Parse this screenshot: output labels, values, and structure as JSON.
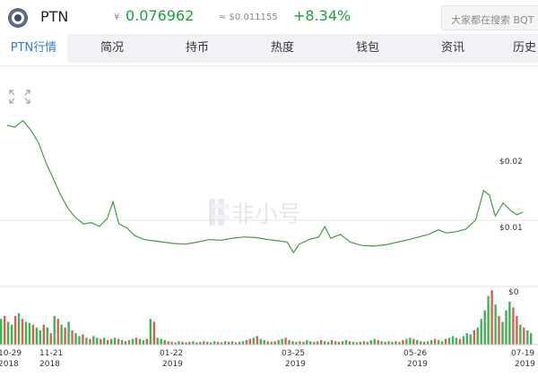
{
  "header": {
    "coin_name": "PTN",
    "cny_symbol": "¥",
    "cny_price": "0.076962",
    "usd_price": "≈ $0.011155",
    "change": "+8.34%",
    "search_placeholder": "大家都在搜索 BQT"
  },
  "tabs": [
    {
      "label": "PTN行情",
      "active": true
    },
    {
      "label": "简况"
    },
    {
      "label": "持币"
    },
    {
      "label": "热度"
    },
    {
      "label": "钱包"
    },
    {
      "label": "资讯"
    },
    {
      "label": "历史"
    }
  ],
  "colors": {
    "accent": "#2b7de0",
    "up": "#19a33a",
    "line": "#3ca13c",
    "vol_up": "#3fb34f",
    "vol_down": "#e05d4d"
  },
  "watermark": "非小号",
  "chart_data": {
    "type": "line",
    "price_axis_labels": [
      "$0.02",
      "$0.01"
    ],
    "volume_axis_label": "$0",
    "x_tick_labels": [
      {
        "date": "10-29",
        "year": "2018"
      },
      {
        "date": "11-21",
        "year": "2018"
      },
      {
        "date": "01-22",
        "year": "2019"
      },
      {
        "date": "03-25",
        "year": "2019"
      },
      {
        "date": "05-26",
        "year": "2019"
      },
      {
        "date": "07-19",
        "year": "2019"
      }
    ],
    "ylim": [
      0,
      0.03
    ],
    "price_points": [
      [
        "2018-10-29",
        0.0255
      ],
      [
        "2018-11-02",
        0.0252
      ],
      [
        "2018-11-06",
        0.0262
      ],
      [
        "2018-11-10",
        0.0248
      ],
      [
        "2018-11-14",
        0.0228
      ],
      [
        "2018-11-18",
        0.0196
      ],
      [
        "2018-11-22",
        0.017
      ],
      [
        "2018-11-25",
        0.015
      ],
      [
        "2018-11-29",
        0.0128
      ],
      [
        "2018-12-03",
        0.0113
      ],
      [
        "2018-12-07",
        0.0104
      ],
      [
        "2018-12-11",
        0.0106
      ],
      [
        "2018-12-15",
        0.01
      ],
      [
        "2018-12-19",
        0.0112
      ],
      [
        "2018-12-22",
        0.0138
      ],
      [
        "2018-12-25",
        0.0104
      ],
      [
        "2018-12-29",
        0.0098
      ],
      [
        "2019-01-02",
        0.0086
      ],
      [
        "2019-01-07",
        0.008
      ],
      [
        "2019-01-12",
        0.0078
      ],
      [
        "2019-01-17",
        0.0076
      ],
      [
        "2019-01-22",
        0.0074
      ],
      [
        "2019-01-28",
        0.0073
      ],
      [
        "2019-02-03",
        0.0076
      ],
      [
        "2019-02-09",
        0.008
      ],
      [
        "2019-02-15",
        0.0079
      ],
      [
        "2019-02-21",
        0.0082
      ],
      [
        "2019-02-27",
        0.0084
      ],
      [
        "2019-03-05",
        0.0083
      ],
      [
        "2019-03-11",
        0.008
      ],
      [
        "2019-03-17",
        0.0078
      ],
      [
        "2019-03-21",
        0.0076
      ],
      [
        "2019-03-24",
        0.006
      ],
      [
        "2019-03-27",
        0.0073
      ],
      [
        "2019-04-01",
        0.008
      ],
      [
        "2019-04-06",
        0.0084
      ],
      [
        "2019-04-09",
        0.01
      ],
      [
        "2019-04-12",
        0.0082
      ],
      [
        "2019-04-17",
        0.0088
      ],
      [
        "2019-04-22",
        0.0076
      ],
      [
        "2019-04-28",
        0.0071
      ],
      [
        "2019-05-04",
        0.007
      ],
      [
        "2019-05-10",
        0.0072
      ],
      [
        "2019-05-16",
        0.0076
      ],
      [
        "2019-05-22",
        0.008
      ],
      [
        "2019-05-27",
        0.0084
      ],
      [
        "2019-06-01",
        0.0088
      ],
      [
        "2019-06-06",
        0.0095
      ],
      [
        "2019-06-10",
        0.009
      ],
      [
        "2019-06-15",
        0.0092
      ],
      [
        "2019-06-20",
        0.0096
      ],
      [
        "2019-06-25",
        0.011
      ],
      [
        "2019-06-29",
        0.0155
      ],
      [
        "2019-07-02",
        0.0148
      ],
      [
        "2019-07-05",
        0.0116
      ],
      [
        "2019-07-09",
        0.0136
      ],
      [
        "2019-07-13",
        0.0124
      ],
      [
        "2019-07-16",
        0.0118
      ],
      [
        "2019-07-19",
        0.0122
      ]
    ],
    "volume_levels": [
      0.45,
      0.5,
      0.4,
      0.35,
      0.5,
      0.55,
      0.45,
      0.4,
      0.38,
      0.35,
      0.3,
      0.25,
      0.35,
      0.3,
      0.2,
      0.5,
      0.45,
      0.35,
      0.3,
      0.4,
      0.25,
      0.2,
      0.15,
      0.18,
      0.12,
      0.1,
      0.15,
      0.12,
      0.1,
      0.12,
      0.08,
      0.1,
      0.12,
      0.1,
      0.08,
      0.06,
      0.08,
      0.1,
      0.12,
      0.1,
      0.08,
      0.1,
      0.45,
      0.4,
      0.12,
      0.1,
      0.08,
      0.06,
      0.05,
      0.04,
      0.06,
      0.05,
      0.04,
      0.05,
      0.06,
      0.04,
      0.05,
      0.06,
      0.05,
      0.04,
      0.06,
      0.05,
      0.04,
      0.06,
      0.05,
      0.06,
      0.04,
      0.05,
      0.06,
      0.08,
      0.1,
      0.12,
      0.15,
      0.1,
      0.08,
      0.06,
      0.05,
      0.06,
      0.08,
      0.1,
      0.12,
      0.08,
      0.06,
      0.05,
      0.06,
      0.05,
      0.08,
      0.06,
      0.05,
      0.06,
      0.08,
      0.06,
      0.05,
      0.08,
      0.06,
      0.05,
      0.06,
      0.08,
      0.06,
      0.05,
      0.04,
      0.05,
      0.06,
      0.05,
      0.08,
      0.1,
      0.08,
      0.06,
      0.05,
      0.06,
      0.05,
      0.06,
      0.05,
      0.08,
      0.1,
      0.12,
      0.1,
      0.08,
      0.06,
      0.05,
      0.06,
      0.08,
      0.1,
      0.08,
      0.06,
      0.1,
      0.12,
      0.15,
      0.12,
      0.1,
      0.15,
      0.2,
      0.18,
      0.25,
      0.3,
      0.45,
      0.6,
      0.85,
      0.95,
      0.7,
      0.5,
      0.4,
      0.6,
      0.75,
      0.65,
      0.5,
      0.35,
      0.3,
      0.25,
      0.2
    ],
    "volume_up_flags": [
      1,
      0,
      1,
      1,
      0,
      1,
      0,
      1,
      1,
      0,
      1,
      1,
      0,
      1,
      0,
      1,
      0,
      1,
      0,
      1,
      0,
      1,
      1,
      0,
      1,
      0,
      1,
      1,
      0,
      1,
      0,
      1,
      1,
      0,
      1,
      0,
      1,
      1,
      0,
      1,
      1,
      0,
      1,
      0,
      1,
      1,
      0,
      1,
      0,
      1,
      1,
      0,
      1,
      0,
      1,
      1,
      0,
      1,
      0,
      1,
      1,
      0,
      1,
      1,
      0,
      1,
      0,
      1,
      1,
      0,
      0,
      1,
      0,
      1,
      1,
      0,
      1,
      0,
      1,
      1,
      0,
      1,
      0,
      1,
      1,
      0,
      1,
      1,
      0,
      1,
      0,
      1,
      1,
      0,
      1,
      0,
      1,
      1,
      0,
      1,
      1,
      0,
      1,
      0,
      1,
      1,
      0,
      1,
      0,
      1,
      1,
      0,
      1,
      0,
      1,
      1,
      0,
      1,
      1,
      0,
      1,
      1,
      0,
      1,
      1,
      0,
      1,
      1,
      1,
      0,
      1,
      1,
      1,
      0,
      1,
      1,
      1,
      1,
      0,
      1,
      0,
      1,
      1,
      1,
      0,
      0,
      1,
      0,
      1,
      1
    ]
  }
}
